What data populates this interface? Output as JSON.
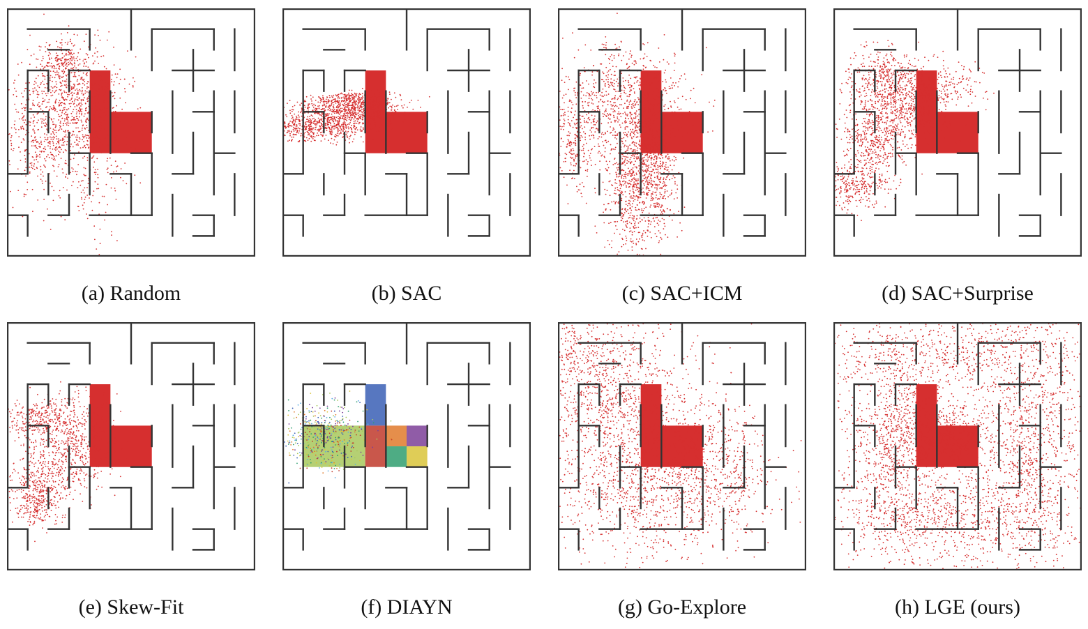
{
  "figure": {
    "colors": {
      "wall": "#333333",
      "visit": "#d62f2f",
      "background": "#ffffff",
      "skill_palette": [
        "#a8c85c",
        "#3a5fb5",
        "#e07a2c",
        "#7d3f98",
        "#2f9e6e",
        "#d9c43a",
        "#c0392b",
        "#5dade2"
      ]
    },
    "panels": [
      {
        "id": "a",
        "caption": "(a) Random",
        "coverage": "start-room-diffuse"
      },
      {
        "id": "b",
        "caption": "(b) SAC",
        "coverage": "start-room-left-corridor"
      },
      {
        "id": "c",
        "caption": "(c) SAC+ICM",
        "coverage": "start-room-down-corridor"
      },
      {
        "id": "d",
        "caption": "(d) SAC+Surprise",
        "coverage": "start-room-diagonal"
      },
      {
        "id": "e",
        "caption": "(e) Skew-Fit",
        "coverage": "start-room-down-left"
      },
      {
        "id": "f",
        "caption": "(f) DIAYN",
        "coverage": "skills-colored"
      },
      {
        "id": "g",
        "caption": "(g) Go-Explore",
        "coverage": "broad-left-half"
      },
      {
        "id": "h",
        "caption": "(h) LGE (ours)",
        "coverage": "full-maze"
      }
    ]
  }
}
